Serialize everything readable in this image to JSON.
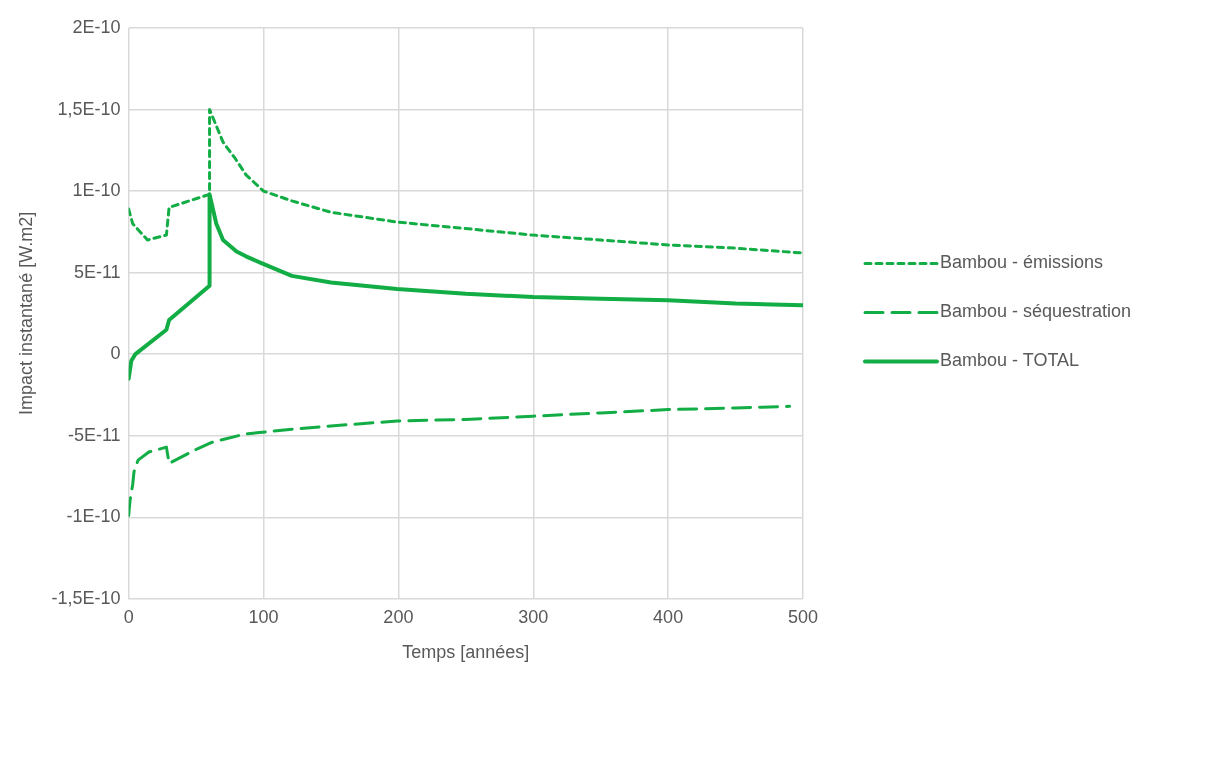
{
  "chart_data": {
    "type": "line",
    "xlabel": "Temps [années]",
    "ylabel": "Impact instantané [W.m2]",
    "xlim": [
      0,
      500
    ],
    "xticks": [
      0,
      100,
      200,
      300,
      400,
      500
    ],
    "ylim": [
      -1.5e-10,
      2e-10
    ],
    "yticks": [
      {
        "value": -1.5e-10,
        "label": "-1,5E-10"
      },
      {
        "value": -1e-10,
        "label": "-1E-10"
      },
      {
        "value": -5e-11,
        "label": "-5E-11"
      },
      0,
      {
        "value": 5e-11,
        "label": "5E-11"
      },
      {
        "value": 1e-10,
        "label": "1E-10"
      },
      {
        "value": 1.5e-10,
        "label": "1,5E-10"
      },
      {
        "value": 2e-10,
        "label": "2E-10"
      }
    ],
    "grid": true,
    "legend": "right",
    "marker": "none",
    "series": [
      {
        "name": "Bambou - émissions",
        "color": "#12ad45",
        "line_style": "dotted",
        "x": [
          0,
          3,
          14,
          28,
          30,
          60,
          60,
          70,
          79,
          87,
          100,
          121,
          150,
          199,
          250,
          300,
          350,
          400,
          450,
          500
        ],
        "values": [
          8.9e-11,
          8e-11,
          7e-11,
          7.3e-11,
          9e-11,
          9.8e-11,
          1.5e-10,
          1.3e-10,
          1.2e-10,
          1.1e-10,
          1e-10,
          9.4e-11,
          8.7e-11,
          8.1e-11,
          7.7e-11,
          7.3e-11,
          7e-11,
          6.7e-11,
          6.5e-11,
          6.2e-11
        ]
      },
      {
        "name": "Bambou - séquestration",
        "color": "#12ad45",
        "line_style": "dashed",
        "x": [
          0,
          1,
          3,
          4,
          7,
          15,
          28,
          30,
          51,
          62,
          86,
          121,
          150,
          199,
          250,
          300,
          350,
          400,
          450,
          490
        ],
        "values": [
          -9.9e-11,
          -9e-11,
          -8e-11,
          -7.2e-11,
          -6.5e-11,
          -6e-11,
          -5.7e-11,
          -6.7e-11,
          -5.8e-11,
          -5.4e-11,
          -4.9e-11,
          -4.6e-11,
          -4.4e-11,
          -4.1e-11,
          -4e-11,
          -3.8e-11,
          -3.6e-11,
          -3.4e-11,
          -3.3e-11,
          -3.2e-11
        ]
      },
      {
        "name": "Bambou - TOTAL",
        "color": "#12ad45",
        "line_style": "solid",
        "x": [
          0,
          2,
          5,
          28,
          30,
          60,
          60,
          65,
          70,
          80,
          87,
          98,
          121,
          150,
          199,
          250,
          300,
          350,
          400,
          450,
          500
        ],
        "values": [
          -1.5e-11,
          -4e-12,
          0,
          1.5e-11,
          2.1e-11,
          4.2e-11,
          9.8e-11,
          8e-11,
          7e-11,
          6.3e-11,
          6e-11,
          5.6e-11,
          4.8e-11,
          4.4e-11,
          4e-11,
          3.7e-11,
          3.5e-11,
          3.4e-11,
          3.3e-11,
          3.1e-11,
          3e-11
        ]
      }
    ]
  }
}
